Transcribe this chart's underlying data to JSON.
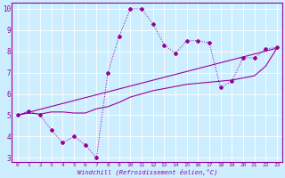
{
  "xlabel": "Windchill (Refroidissement éolien,°C)",
  "bg_color": "#cceeff",
  "line_color": "#990099",
  "grid_color": "#ffffff",
  "xlim": [
    -0.5,
    23.5
  ],
  "ylim": [
    2.8,
    10.3
  ],
  "xticks": [
    0,
    1,
    2,
    3,
    4,
    5,
    6,
    7,
    8,
    9,
    10,
    11,
    12,
    13,
    14,
    15,
    16,
    17,
    18,
    19,
    20,
    21,
    22,
    23
  ],
  "yticks": [
    3,
    4,
    5,
    6,
    7,
    8,
    9,
    10
  ],
  "series_jagged_x": [
    0,
    1,
    2,
    3,
    4,
    5,
    6,
    7,
    8,
    9,
    10,
    11,
    12,
    13,
    14,
    15,
    16,
    17,
    18,
    19,
    20,
    21,
    22,
    23
  ],
  "series_jagged_y": [
    5.0,
    5.2,
    5.0,
    4.3,
    3.7,
    4.0,
    3.6,
    3.0,
    7.0,
    8.7,
    10.0,
    10.0,
    9.3,
    8.3,
    7.9,
    8.5,
    8.5,
    8.4,
    6.3,
    6.6,
    7.7,
    7.7,
    8.1,
    8.2
  ],
  "series_smooth_x": [
    0,
    1,
    2,
    3,
    4,
    5,
    6,
    7,
    8,
    9,
    10,
    11,
    12,
    13,
    14,
    15,
    16,
    17,
    18,
    19,
    20,
    21,
    22,
    23
  ],
  "series_smooth_y": [
    5.0,
    5.1,
    5.05,
    5.15,
    5.15,
    5.1,
    5.1,
    5.3,
    5.4,
    5.6,
    5.85,
    6.0,
    6.15,
    6.25,
    6.35,
    6.45,
    6.5,
    6.55,
    6.6,
    6.65,
    6.75,
    6.85,
    7.3,
    8.15
  ],
  "series_trend_x": [
    0,
    23
  ],
  "series_trend_y": [
    5.0,
    8.15
  ]
}
